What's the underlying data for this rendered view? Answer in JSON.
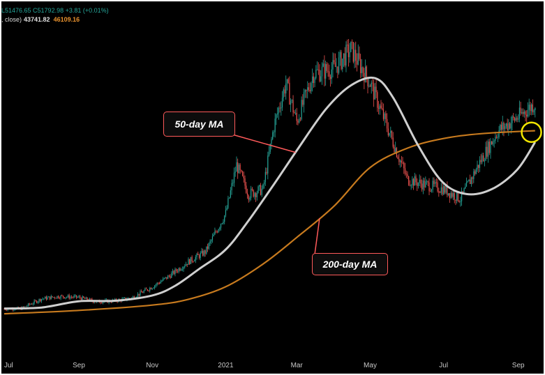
{
  "legend": {
    "ohlc_text": "L51476.65  C51792.98  +3.81 (+0.01%)",
    "ma_prefix": ", close)",
    "ma50_value": "43741.82",
    "ma200_value": "46109.16"
  },
  "annotations": {
    "ma50_label": "50-day MA",
    "ma200_label": "200-day MA"
  },
  "colors": {
    "background": "#000000",
    "ma50": "#cfcfcf",
    "ma200": "#c77a1e",
    "candle_up": "#26a69a",
    "candle_down": "#ef5350",
    "callout_border": "#ff5a5a",
    "highlight_circle": "#f2e600"
  },
  "chart_data": {
    "type": "line",
    "x_tick_labels": [
      "Jul",
      "Sep",
      "Nov",
      "2021",
      "Mar",
      "May",
      "Jul",
      "Sep"
    ],
    "series": [
      {
        "name": "50-day MA",
        "style": "line",
        "x": [
          "2020-07-01",
          "2020-08-01",
          "2020-09-01",
          "2020-10-01",
          "2020-11-01",
          "2020-11-20",
          "2020-12-10",
          "2021-01-01",
          "2021-01-20",
          "2021-02-10",
          "2021-03-01",
          "2021-03-25",
          "2021-04-15",
          "2021-05-05",
          "2021-05-20",
          "2021-06-10",
          "2021-06-30",
          "2021-07-20",
          "2021-08-10",
          "2021-08-31",
          "2021-09-15"
        ],
        "values": [
          9300,
          9500,
          10800,
          10900,
          12000,
          14000,
          17500,
          21500,
          27500,
          35000,
          42000,
          50500,
          55500,
          57000,
          53000,
          43000,
          35500,
          33000,
          34000,
          38000,
          43742
        ]
      },
      {
        "name": "200-day MA",
        "style": "line",
        "x": [
          "2020-07-01",
          "2020-09-01",
          "2020-11-01",
          "2020-12-01",
          "2021-01-01",
          "2021-02-01",
          "2021-03-01",
          "2021-04-01",
          "2021-05-01",
          "2021-06-01",
          "2021-07-01",
          "2021-08-01",
          "2021-09-15"
        ],
        "values": [
          8200,
          8900,
          10000,
          11200,
          13800,
          18500,
          24000,
          30500,
          38500,
          42500,
          44500,
          45500,
          46109
        ]
      },
      {
        "name": "",
        "style": "candlestick",
        "x": [
          "2020-07-01",
          "2020-07-15",
          "2020-08-01",
          "2020-08-15",
          "2020-09-01",
          "2020-09-15",
          "2020-10-01",
          "2020-10-15",
          "2020-11-01",
          "2020-11-15",
          "2020-12-01",
          "2020-12-15",
          "2021-01-01",
          "2021-01-10",
          "2021-01-20",
          "2021-02-01",
          "2021-02-10",
          "2021-02-20",
          "2021-03-01",
          "2021-03-15",
          "2021-04-01",
          "2021-04-15",
          "2021-05-01",
          "2021-05-15",
          "2021-06-01",
          "2021-06-15",
          "2021-07-01",
          "2021-07-15",
          "2021-08-01",
          "2021-08-15",
          "2021-09-01",
          "2021-09-15"
        ],
        "values": [
          9200,
          9300,
          11300,
          11800,
          11600,
          10700,
          10900,
          11500,
          13800,
          16000,
          19000,
          21000,
          29000,
          39000,
          33000,
          34000,
          47000,
          56000,
          48000,
          58000,
          59000,
          63000,
          56000,
          47000,
          36000,
          35000,
          34000,
          32000,
          40000,
          46000,
          49000,
          51793
        ]
      }
    ],
    "ylim": [
      0,
      70000
    ],
    "grid": false
  }
}
